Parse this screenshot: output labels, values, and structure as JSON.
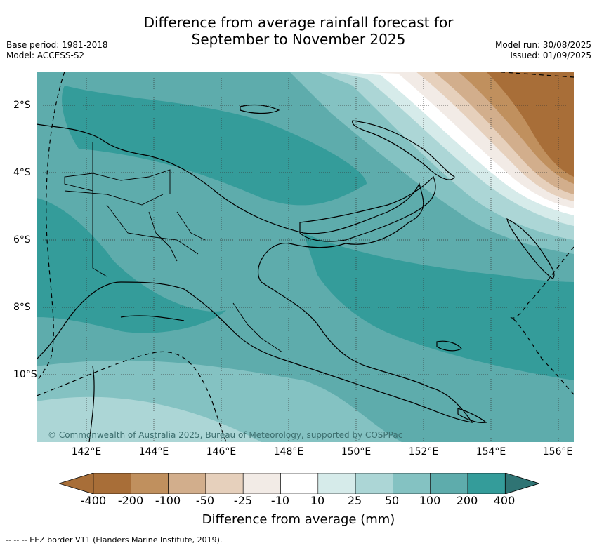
{
  "title_line1": "Difference from average rainfall forecast for",
  "title_line2": "September to November 2025",
  "base_period": "Base period: 1981-2018",
  "model": "Model: ACCESS-S2",
  "model_run": "Model run: 30/08/2025",
  "issued": "Issued: 01/09/2025",
  "lon_labels": [
    "142°E",
    "144°E",
    "146°E",
    "148°E",
    "150°E",
    "152°E",
    "154°E",
    "156°E"
  ],
  "lat_labels": [
    "2°S",
    "4°S",
    "6°S",
    "8°S",
    "10°S"
  ],
  "colorbar_labels": [
    "-400",
    "-200",
    "-100",
    "-50",
    "-25",
    "-10",
    "10",
    "25",
    "50",
    "100",
    "200",
    "400"
  ],
  "colorbar_colors": [
    "#a86e38",
    "#c0905e",
    "#d2ae8c",
    "#e6d0bc",
    "#f2ebe6",
    "#ffffff",
    "#d6ebea",
    "#acd6d6",
    "#84c2c2",
    "#5eacac",
    "#349c9a"
  ],
  "colorbar_extend_low": "#a86e38",
  "colorbar_extend_high": "#2f7474",
  "colorbar_title": "Difference from average (mm)",
  "copyright": "© Commonwealth of Australia 2025, Bureau of Meteorology, supported by COSPPac",
  "eez_legend": "--  --  -- EEZ border V11 (Flanders Marine Institute, 2019)."
}
